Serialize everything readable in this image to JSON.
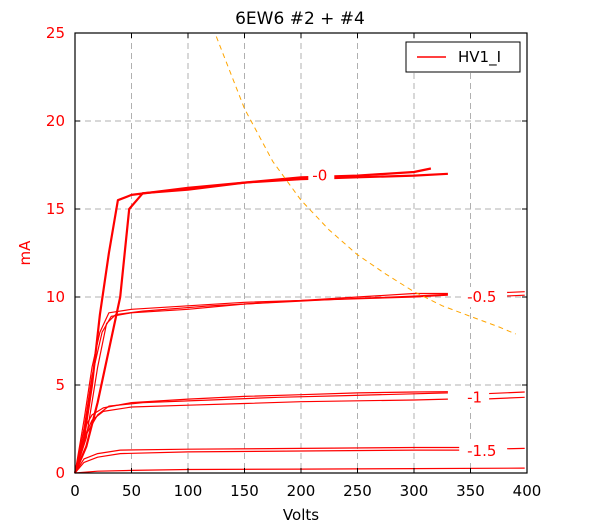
{
  "chart_data": {
    "type": "line",
    "title": "6EW6 #2 + #4",
    "xlabel": "Volts",
    "ylabel": "mA",
    "xlim": [
      0,
      400
    ],
    "ylim": [
      0,
      25
    ],
    "xticks": [
      "0",
      "50",
      "100",
      "150",
      "200",
      "250",
      "300",
      "350",
      "400"
    ],
    "yticks": [
      "0",
      "5",
      "10",
      "15",
      "20",
      "25"
    ],
    "grid": true,
    "legend": {
      "position": "top-right",
      "entries": [
        "HV1_I"
      ]
    },
    "colors": {
      "curve": "#ff0000",
      "ytext": "#ff0000",
      "dissipation": "#ffa500",
      "axis": "#000000",
      "grid": "#b0b0b0"
    },
    "series": [
      {
        "label": "-0",
        "label_at": [
          210,
          16.9
        ],
        "line_width": 2.2,
        "traces": [
          [
            [
              0,
              0
            ],
            [
              8,
              2
            ],
            [
              15,
              5
            ],
            [
              22,
              9
            ],
            [
              30,
              12.5
            ],
            [
              38,
              15.5
            ],
            [
              50,
              15.8
            ],
            [
              100,
              16.2
            ],
            [
              150,
              16.5
            ],
            [
              200,
              16.8
            ],
            [
              250,
              16.9
            ],
            [
              300,
              17.1
            ],
            [
              315,
              17.3
            ]
          ],
          [
            [
              0,
              0
            ],
            [
              10,
              1.5
            ],
            [
              20,
              4
            ],
            [
              30,
              7
            ],
            [
              40,
              10
            ],
            [
              48,
              15
            ],
            [
              60,
              15.9
            ],
            [
              100,
              16.1
            ],
            [
              150,
              16.5
            ],
            [
              200,
              16.7
            ],
            [
              250,
              16.8
            ],
            [
              300,
              16.9
            ],
            [
              330,
              17
            ]
          ]
        ]
      },
      {
        "label": "-0.5",
        "label_at": [
          347,
          10.0
        ],
        "line_width": 1.2,
        "traces": [
          [
            [
              0,
              0
            ],
            [
              8,
              3
            ],
            [
              15,
              6
            ],
            [
              22,
              8
            ],
            [
              30,
              9.1
            ],
            [
              50,
              9.3
            ],
            [
              100,
              9.5
            ],
            [
              150,
              9.7
            ],
            [
              200,
              9.8
            ],
            [
              250,
              10
            ],
            [
              300,
              10.2
            ],
            [
              330,
              10.2
            ]
          ],
          [
            [
              0,
              0
            ],
            [
              8,
              2.5
            ],
            [
              15,
              5.5
            ],
            [
              24,
              8
            ],
            [
              32,
              8.9
            ],
            [
              50,
              9.1
            ],
            [
              100,
              9.3
            ],
            [
              150,
              9.6
            ],
            [
              200,
              9.8
            ],
            [
              250,
              9.9
            ],
            [
              300,
              10.0
            ],
            [
              330,
              10.1
            ]
          ],
          [
            [
              0,
              0
            ],
            [
              10,
              2
            ],
            [
              20,
              6
            ],
            [
              28,
              8.5
            ],
            [
              36,
              9
            ],
            [
              60,
              9.2
            ],
            [
              120,
              9.5
            ],
            [
              180,
              9.7
            ],
            [
              240,
              9.9
            ],
            [
              300,
              10.05
            ],
            [
              330,
              10.15
            ]
          ],
          [
            [
              361,
              10.2
            ],
            [
              398,
              10.3
            ]
          ],
          [
            [
              361,
              10.0
            ],
            [
              398,
              10.1
            ]
          ]
        ]
      },
      {
        "label": "-1",
        "label_at": [
          347,
          4.3
        ],
        "line_width": 1.2,
        "traces": [
          [
            [
              0,
              0
            ],
            [
              8,
              2.5
            ],
            [
              15,
              3.3
            ],
            [
              25,
              3.7
            ],
            [
              50,
              4.0
            ],
            [
              100,
              4.2
            ],
            [
              150,
              4.35
            ],
            [
              200,
              4.45
            ],
            [
              250,
              4.55
            ],
            [
              300,
              4.6
            ],
            [
              330,
              4.62
            ]
          ],
          [
            [
              0,
              0
            ],
            [
              8,
              2
            ],
            [
              15,
              3
            ],
            [
              25,
              3.5
            ],
            [
              50,
              3.75
            ],
            [
              100,
              3.85
            ],
            [
              150,
              3.95
            ],
            [
              200,
              4.05
            ],
            [
              250,
              4.1
            ],
            [
              300,
              4.15
            ],
            [
              330,
              4.2
            ]
          ],
          [
            [
              0,
              0
            ],
            [
              10,
              2.2
            ],
            [
              20,
              3.3
            ],
            [
              30,
              3.8
            ],
            [
              60,
              4.0
            ],
            [
              120,
              4.15
            ],
            [
              180,
              4.3
            ],
            [
              240,
              4.4
            ],
            [
              300,
              4.5
            ],
            [
              330,
              4.55
            ]
          ],
          [
            [
              361,
              4.5
            ],
            [
              398,
              4.6
            ]
          ],
          [
            [
              361,
              4.2
            ],
            [
              398,
              4.3
            ]
          ]
        ]
      },
      {
        "label": "-1.5",
        "label_at": [
          347,
          1.25
        ],
        "line_width": 1.2,
        "traces": [
          [
            [
              0,
              0
            ],
            [
              8,
              0.8
            ],
            [
              20,
              1.1
            ],
            [
              40,
              1.3
            ],
            [
              100,
              1.35
            ],
            [
              200,
              1.4
            ],
            [
              300,
              1.45
            ],
            [
              340,
              1.45
            ]
          ],
          [
            [
              0,
              0
            ],
            [
              8,
              0.6
            ],
            [
              20,
              0.9
            ],
            [
              40,
              1.1
            ],
            [
              100,
              1.2
            ],
            [
              200,
              1.25
            ],
            [
              300,
              1.3
            ],
            [
              340,
              1.3
            ]
          ],
          [
            [
              361,
              1.35
            ],
            [
              398,
              1.4
            ]
          ]
        ]
      },
      {
        "label": "",
        "label_at": null,
        "line_width": 1.2,
        "traces": [
          [
            [
              0,
              0
            ],
            [
              20,
              0.1
            ],
            [
              50,
              0.15
            ],
            [
              100,
              0.2
            ],
            [
              200,
              0.22
            ],
            [
              300,
              0.25
            ],
            [
              398,
              0.28
            ]
          ]
        ]
      }
    ],
    "dissipation_curve": {
      "style": "dashed",
      "x": [
        125,
        150,
        175,
        200,
        225,
        250,
        275,
        300,
        325,
        350,
        375,
        390
      ],
      "y": [
        24.8,
        20.7,
        17.7,
        15.5,
        13.8,
        12.4,
        11.3,
        10.3,
        9.5,
        8.9,
        8.3,
        7.9
      ]
    }
  }
}
